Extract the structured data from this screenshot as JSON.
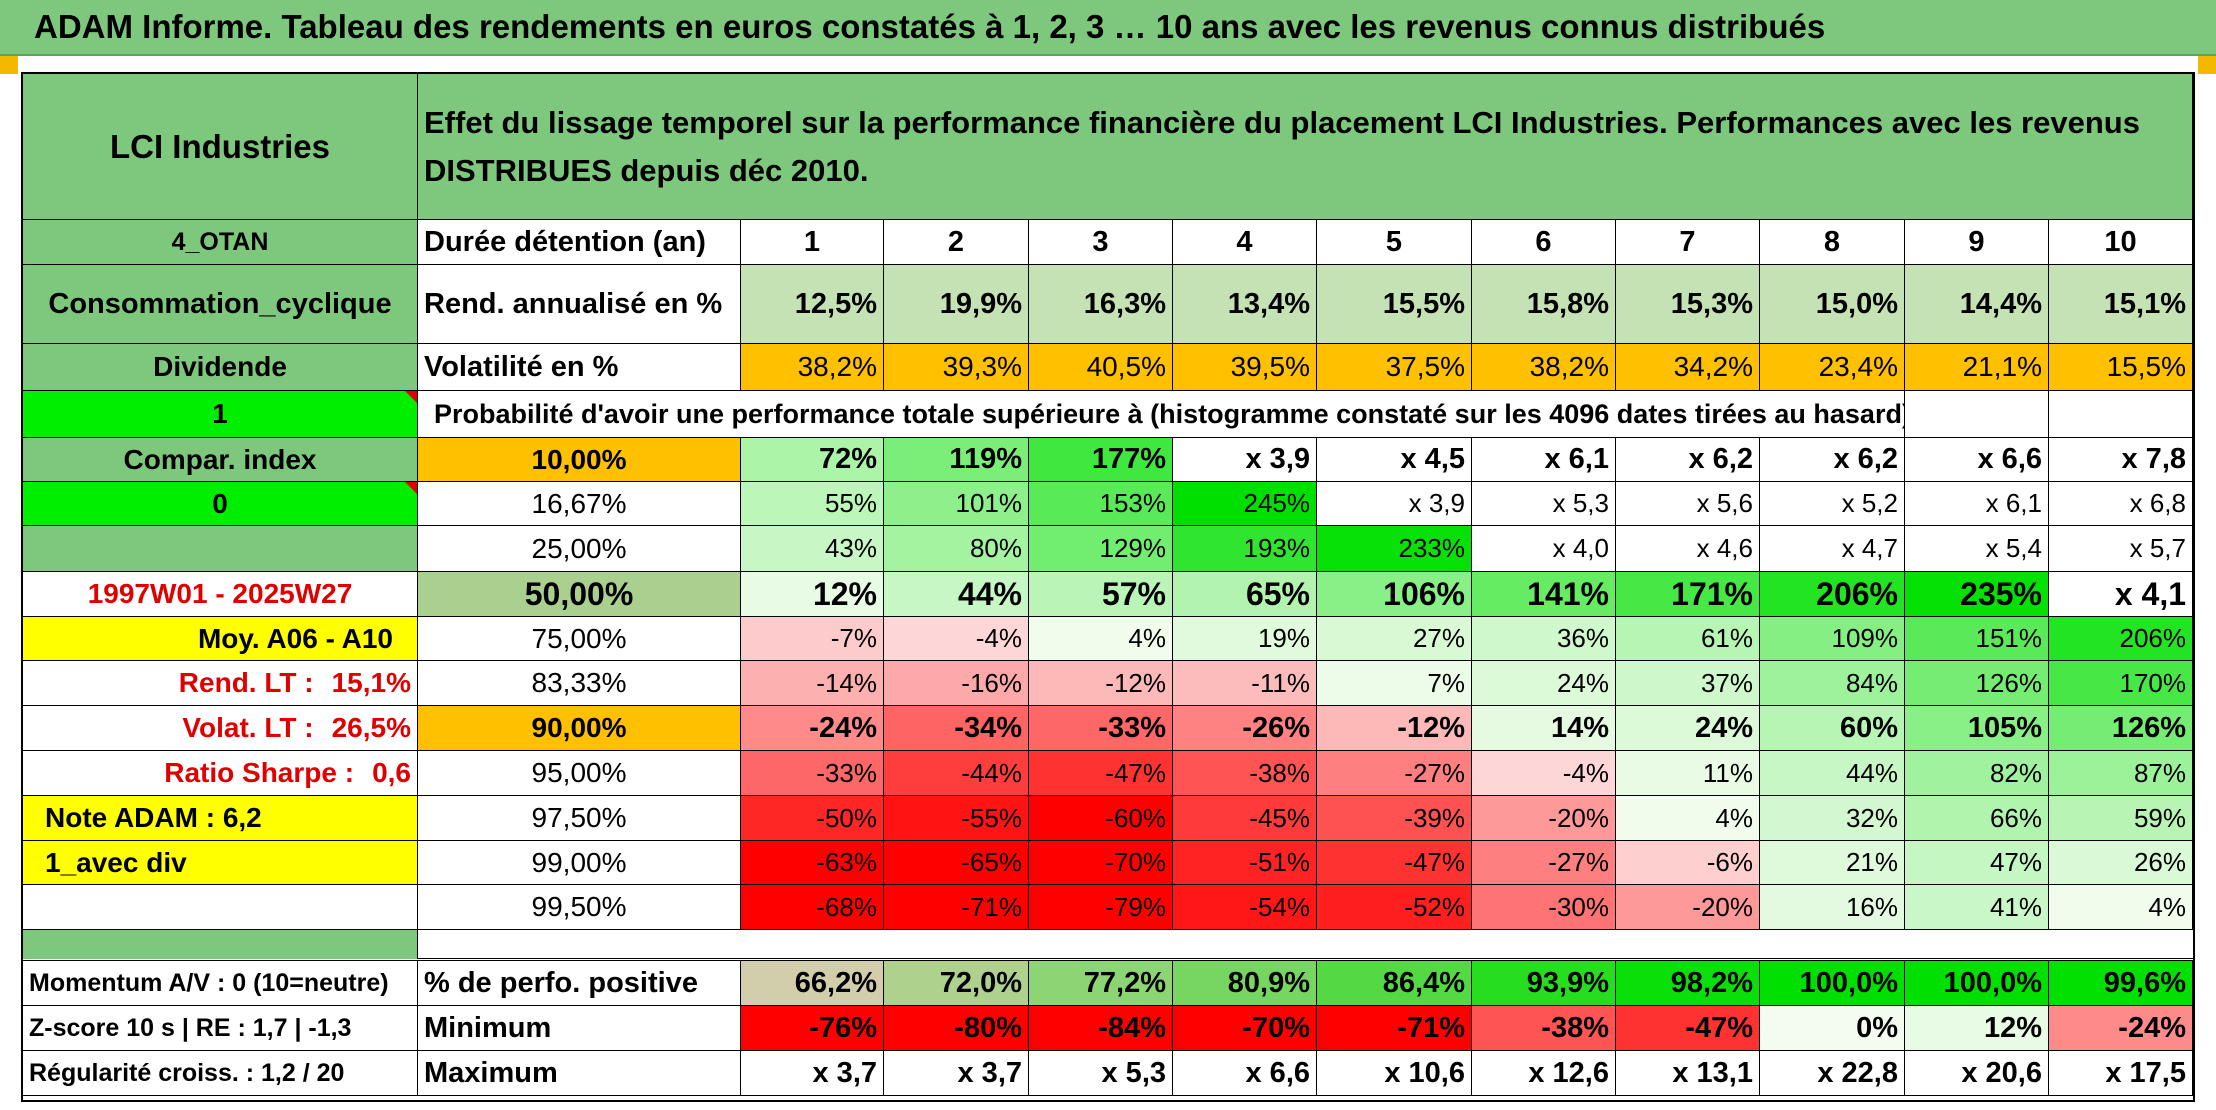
{
  "report_title": "ADAM Informe. Tableau des rendements en euros constatés à 1, 2, 3 … 10 ans avec les revenus connus distribués",
  "colors": {
    "header_green": "#7ec87e",
    "pale_green": "#c4e2b4",
    "orange": "#ffc000",
    "yellow": "#ffff00",
    "bright_green": "#00ee00",
    "red": "#ff0000",
    "label_red": "#e00000"
  },
  "left_panel": {
    "company": "LCI Industries",
    "code": "4_OTAN",
    "sector": "Consommation_cyclique",
    "income_type": "Dividende",
    "flag_value": "1",
    "compar_index_label": "Compar. index",
    "compar_index_value": "0",
    "period": "1997W01 - 2025W27",
    "average_label": "Moy. A06 - A10",
    "rend_lt_label": "Rend. LT :",
    "rend_lt_value": "15,1%",
    "volat_lt_label": "Volat. LT :",
    "volat_lt_value": "26,5%",
    "sharpe_label": "Ratio Sharpe :",
    "sharpe_value": "0,6",
    "note_adam": "Note ADAM : 6,2",
    "div_mode": "1_avec div",
    "momentum": "Momentum A/V : 0 (10=neutre)",
    "zscore": "Z-score 10 s | RE : 1,7 | -1,3",
    "regularite": "Régularité croiss. : 1,2 / 20"
  },
  "header_text": "Effet du lissage temporel sur la performance financière du placement LCI Industries. Performances avec les revenus DISTRIBUES depuis déc 2010.",
  "duration_label": "Durée détention (an)",
  "years": [
    "1",
    "2",
    "3",
    "4",
    "5",
    "6",
    "7",
    "8",
    "9",
    "10"
  ],
  "rend_row": {
    "label": "Rend. annualisé en %",
    "values": [
      "12,5%",
      "19,9%",
      "16,3%",
      "13,4%",
      "15,5%",
      "15,8%",
      "15,3%",
      "15,0%",
      "14,4%",
      "15,1%"
    ]
  },
  "vol_row": {
    "label": "Volatilité en %",
    "values": [
      "38,2%",
      "39,3%",
      "40,5%",
      "39,5%",
      "37,5%",
      "38,2%",
      "34,2%",
      "23,4%",
      "21,1%",
      "15,5%"
    ]
  },
  "prob_heading": "Probabilité d'avoir une performance totale supérieure à (histogramme constaté sur les 4096 dates tirées au hasard)",
  "prob_rows": [
    {
      "pct": "10,00%",
      "values": [
        "72%",
        "119%",
        "177%",
        "x 3,9",
        "x 4,5",
        "x 6,1",
        "x 6,2",
        "x 6,2",
        "x 6,6",
        "x 7,8"
      ]
    },
    {
      "pct": "16,67%",
      "values": [
        "55%",
        "101%",
        "153%",
        "245%",
        "x 3,9",
        "x 5,3",
        "x 5,6",
        "x 5,2",
        "x 6,1",
        "x 6,8"
      ]
    },
    {
      "pct": "25,00%",
      "values": [
        "43%",
        "80%",
        "129%",
        "193%",
        "233%",
        "x 4,0",
        "x 4,6",
        "x 4,7",
        "x 5,4",
        "x 5,7"
      ]
    },
    {
      "pct": "50,00%",
      "values": [
        "12%",
        "44%",
        "57%",
        "65%",
        "106%",
        "141%",
        "171%",
        "206%",
        "235%",
        "x 4,1"
      ]
    },
    {
      "pct": "75,00%",
      "values": [
        "-7%",
        "-4%",
        "4%",
        "19%",
        "27%",
        "36%",
        "61%",
        "109%",
        "151%",
        "206%"
      ]
    },
    {
      "pct": "83,33%",
      "values": [
        "-14%",
        "-16%",
        "-12%",
        "-11%",
        "7%",
        "24%",
        "37%",
        "84%",
        "126%",
        "170%"
      ]
    },
    {
      "pct": "90,00%",
      "values": [
        "-24%",
        "-34%",
        "-33%",
        "-26%",
        "-12%",
        "14%",
        "24%",
        "60%",
        "105%",
        "126%"
      ]
    },
    {
      "pct": "95,00%",
      "values": [
        "-33%",
        "-44%",
        "-47%",
        "-38%",
        "-27%",
        "-4%",
        "11%",
        "44%",
        "82%",
        "87%"
      ]
    },
    {
      "pct": "97,50%",
      "values": [
        "-50%",
        "-55%",
        "-60%",
        "-45%",
        "-39%",
        "-20%",
        "4%",
        "32%",
        "66%",
        "59%"
      ]
    },
    {
      "pct": "99,00%",
      "values": [
        "-63%",
        "-65%",
        "-70%",
        "-51%",
        "-47%",
        "-27%",
        "-6%",
        "21%",
        "47%",
        "26%"
      ]
    },
    {
      "pct": "99,50%",
      "values": [
        "-68%",
        "-71%",
        "-79%",
        "-54%",
        "-52%",
        "-30%",
        "-20%",
        "16%",
        "41%",
        "4%"
      ]
    }
  ],
  "bottom_rows": [
    {
      "label": "% de perfo. positive",
      "values": [
        "66,2%",
        "72,0%",
        "77,2%",
        "80,9%",
        "86,4%",
        "93,9%",
        "98,2%",
        "100,0%",
        "100,0%",
        "99,6%"
      ]
    },
    {
      "label": "Minimum",
      "values": [
        "-76%",
        "-80%",
        "-84%",
        "-70%",
        "-71%",
        "-38%",
        "-47%",
        "0%",
        "12%",
        "-24%"
      ]
    },
    {
      "label": "Maximum",
      "values": [
        "x 3,7",
        "x 3,7",
        "x 5,3",
        "x 6,6",
        "x 10,6",
        "x 12,6",
        "x 13,1",
        "x 22,8",
        "x 20,6",
        "x 17,5"
      ]
    }
  ]
}
